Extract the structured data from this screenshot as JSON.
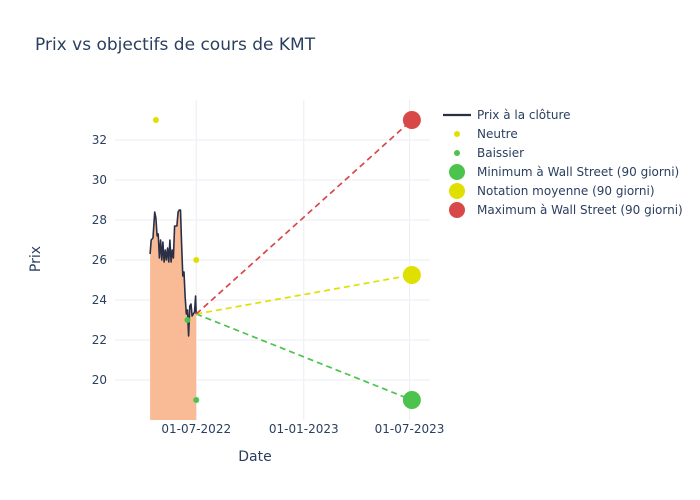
{
  "chart_data": {
    "type": "line",
    "title": "Prix vs objectifs de cours de KMT",
    "xlabel": "Date",
    "ylabel": "Prix",
    "x_ticks": [
      "01-07-2022",
      "01-01-2023",
      "01-07-2023"
    ],
    "y_ticks": [
      20,
      22,
      24,
      26,
      28,
      30,
      32
    ],
    "xlim": [
      "2022-02-12",
      "2023-08-05"
    ],
    "ylim": [
      18.0,
      34.0
    ],
    "grid": true,
    "legend_position": "right",
    "series": [
      {
        "name": "Prix à la clôture",
        "kind": "line-area",
        "color": "#2a2f45",
        "fill": "#f9bb96",
        "points": [
          [
            "2022-04-13",
            26.3
          ],
          [
            "2022-04-15",
            27.0
          ],
          [
            "2022-04-18",
            27.1
          ],
          [
            "2022-04-21",
            28.4
          ],
          [
            "2022-04-23",
            28.1
          ],
          [
            "2022-04-25",
            27.2
          ],
          [
            "2022-04-27",
            27.3
          ],
          [
            "2022-04-29",
            26.1
          ],
          [
            "2022-05-01",
            27.0
          ],
          [
            "2022-05-03",
            26.0
          ],
          [
            "2022-05-05",
            26.9
          ],
          [
            "2022-05-07",
            25.9
          ],
          [
            "2022-05-09",
            26.5
          ],
          [
            "2022-05-11",
            26.0
          ],
          [
            "2022-05-13",
            26.6
          ],
          [
            "2022-05-15",
            25.9
          ],
          [
            "2022-05-17",
            27.0
          ],
          [
            "2022-05-19",
            25.9
          ],
          [
            "2022-05-21",
            26.5
          ],
          [
            "2022-05-23",
            26.1
          ],
          [
            "2022-05-25",
            27.7
          ],
          [
            "2022-05-27",
            27.7
          ],
          [
            "2022-05-29",
            27.7
          ],
          [
            "2022-05-31",
            28.4
          ],
          [
            "2022-06-02",
            28.5
          ],
          [
            "2022-06-04",
            28.5
          ],
          [
            "2022-06-06",
            26.8
          ],
          [
            "2022-06-08",
            25.2
          ],
          [
            "2022-06-10",
            25.4
          ],
          [
            "2022-06-12",
            24.2
          ],
          [
            "2022-06-14",
            23.3
          ],
          [
            "2022-06-16",
            23.5
          ],
          [
            "2022-06-18",
            22.2
          ],
          [
            "2022-06-20",
            23.7
          ],
          [
            "2022-06-22",
            23.8
          ],
          [
            "2022-06-24",
            23.2
          ],
          [
            "2022-06-26",
            23.3
          ],
          [
            "2022-06-28",
            23.4
          ],
          [
            "2022-06-30",
            24.2
          ],
          [
            "2022-07-01",
            23.3
          ]
        ]
      },
      {
        "name": "Neutre",
        "kind": "markers",
        "color": "#e0e000",
        "points": [
          [
            "2022-04-23",
            33.0
          ],
          [
            "2022-07-01",
            26.0
          ]
        ]
      },
      {
        "name": "Baissier",
        "kind": "markers",
        "color": "#4cc34c",
        "points": [
          [
            "2022-06-16",
            23.0
          ],
          [
            "2022-07-01",
            19.0
          ]
        ]
      },
      {
        "name": "Minimum à Wall Street (90 giorni)",
        "kind": "target",
        "color": "#4cc34c",
        "from": [
          "2022-07-01",
          23.3
        ],
        "to": [
          "2023-07-05",
          19.0
        ]
      },
      {
        "name": "Notation moyenne (90 giorni)",
        "kind": "target",
        "color": "#e0e000",
        "from": [
          "2022-07-01",
          23.3
        ],
        "to": [
          "2023-07-05",
          25.25
        ]
      },
      {
        "name": "Maximum à Wall Street (90 giorni)",
        "kind": "target",
        "color": "#d94848",
        "from": [
          "2022-07-01",
          23.3
        ],
        "to": [
          "2023-07-05",
          33.0
        ]
      }
    ]
  }
}
